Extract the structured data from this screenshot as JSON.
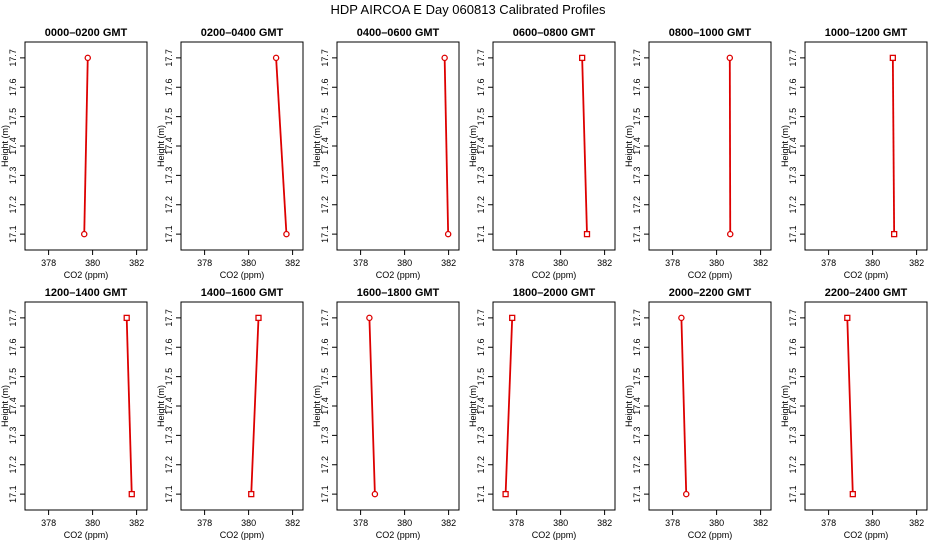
{
  "page": {
    "title": "HDP AIRCOA E  Day 060813  Calibrated Profiles"
  },
  "style": {
    "line_color": "#dd0000",
    "marker_color": "#dd0000",
    "axis_color": "#000000"
  },
  "chart_data": [
    {
      "type": "line",
      "title": "0000–0200 GMT",
      "xlabel": "CO2 (ppm)",
      "ylabel": "Height (m)",
      "xlim": [
        377.2,
        382.2
      ],
      "ylim": [
        17.08,
        17.72
      ],
      "xticks": [
        "378",
        "380",
        "382"
      ],
      "yticks": [
        "17.1",
        "17.2",
        "17.3",
        "17.4",
        "17.5",
        "17.6",
        "17.7"
      ],
      "marker": "circle",
      "points": [
        {
          "x": 379.78,
          "y": 17.7
        },
        {
          "x": 379.62,
          "y": 17.1
        }
      ]
    },
    {
      "type": "line",
      "title": "0200–0400 GMT",
      "xlabel": "CO2 (ppm)",
      "ylabel": "Height (m)",
      "xlim": [
        377.2,
        382.2
      ],
      "ylim": [
        17.08,
        17.72
      ],
      "xticks": [
        "378",
        "380",
        "382"
      ],
      "yticks": [
        "17.1",
        "17.2",
        "17.3",
        "17.4",
        "17.5",
        "17.6",
        "17.7"
      ],
      "marker": "circle",
      "points": [
        {
          "x": 381.25,
          "y": 17.7
        },
        {
          "x": 381.72,
          "y": 17.1
        }
      ]
    },
    {
      "type": "line",
      "title": "0400–0600 GMT",
      "xlabel": "CO2 (ppm)",
      "ylabel": "Height (m)",
      "xlim": [
        377.2,
        382.2
      ],
      "ylim": [
        17.08,
        17.72
      ],
      "xticks": [
        "378",
        "380",
        "382"
      ],
      "yticks": [
        "17.1",
        "17.2",
        "17.3",
        "17.4",
        "17.5",
        "17.6",
        "17.7"
      ],
      "marker": "circle",
      "points": [
        {
          "x": 381.82,
          "y": 17.7
        },
        {
          "x": 381.98,
          "y": 17.1
        }
      ]
    },
    {
      "type": "line",
      "title": "0600–0800 GMT",
      "xlabel": "CO2 (ppm)",
      "ylabel": "Height (m)",
      "xlim": [
        377.2,
        382.2
      ],
      "ylim": [
        17.08,
        17.72
      ],
      "xticks": [
        "378",
        "380",
        "382"
      ],
      "yticks": [
        "17.1",
        "17.2",
        "17.3",
        "17.4",
        "17.5",
        "17.6",
        "17.7"
      ],
      "marker": "square",
      "points": [
        {
          "x": 380.98,
          "y": 17.7
        },
        {
          "x": 381.2,
          "y": 17.1
        }
      ]
    },
    {
      "type": "line",
      "title": "0800–1000 GMT",
      "xlabel": "CO2 (ppm)",
      "ylabel": "Height (m)",
      "xlim": [
        377.2,
        382.2
      ],
      "ylim": [
        17.08,
        17.72
      ],
      "xticks": [
        "378",
        "380",
        "382"
      ],
      "yticks": [
        "17.1",
        "17.2",
        "17.3",
        "17.4",
        "17.5",
        "17.6",
        "17.7"
      ],
      "marker": "circle",
      "points": [
        {
          "x": 380.6,
          "y": 17.7
        },
        {
          "x": 380.62,
          "y": 17.1
        }
      ]
    },
    {
      "type": "line",
      "title": "1000–1200 GMT",
      "xlabel": "CO2 (ppm)",
      "ylabel": "Height (m)",
      "xlim": [
        377.2,
        382.2
      ],
      "ylim": [
        17.08,
        17.72
      ],
      "xticks": [
        "378",
        "380",
        "382"
      ],
      "yticks": [
        "17.1",
        "17.2",
        "17.3",
        "17.4",
        "17.5",
        "17.6",
        "17.7"
      ],
      "marker": "square",
      "points": [
        {
          "x": 380.92,
          "y": 17.7
        },
        {
          "x": 380.98,
          "y": 17.1
        }
      ]
    },
    {
      "type": "line",
      "title": "1200–1400 GMT",
      "xlabel": "CO2 (ppm)",
      "ylabel": "Height (m)",
      "xlim": [
        377.2,
        382.2
      ],
      "ylim": [
        17.08,
        17.72
      ],
      "xticks": [
        "378",
        "380",
        "382"
      ],
      "yticks": [
        "17.1",
        "17.2",
        "17.3",
        "17.4",
        "17.5",
        "17.6",
        "17.7"
      ],
      "marker": "square",
      "points": [
        {
          "x": 381.55,
          "y": 17.7
        },
        {
          "x": 381.78,
          "y": 17.1
        }
      ]
    },
    {
      "type": "line",
      "title": "1400–1600 GMT",
      "xlabel": "CO2 (ppm)",
      "ylabel": "Height (m)",
      "xlim": [
        377.2,
        382.2
      ],
      "ylim": [
        17.08,
        17.72
      ],
      "xticks": [
        "378",
        "380",
        "382"
      ],
      "yticks": [
        "17.1",
        "17.2",
        "17.3",
        "17.4",
        "17.5",
        "17.6",
        "17.7"
      ],
      "marker": "square",
      "points": [
        {
          "x": 380.45,
          "y": 17.7
        },
        {
          "x": 380.12,
          "y": 17.1
        }
      ]
    },
    {
      "type": "line",
      "title": "1600–1800 GMT",
      "xlabel": "CO2 (ppm)",
      "ylabel": "Height (m)",
      "xlim": [
        377.2,
        382.2
      ],
      "ylim": [
        17.08,
        17.72
      ],
      "xticks": [
        "378",
        "380",
        "382"
      ],
      "yticks": [
        "17.1",
        "17.2",
        "17.3",
        "17.4",
        "17.5",
        "17.6",
        "17.7"
      ],
      "marker": "circle",
      "points": [
        {
          "x": 378.4,
          "y": 17.7
        },
        {
          "x": 378.65,
          "y": 17.1
        }
      ]
    },
    {
      "type": "line",
      "title": "1800–2000 GMT",
      "xlabel": "CO2 (ppm)",
      "ylabel": "Height (m)",
      "xlim": [
        377.2,
        382.2
      ],
      "ylim": [
        17.08,
        17.72
      ],
      "xticks": [
        "378",
        "380",
        "382"
      ],
      "yticks": [
        "17.1",
        "17.2",
        "17.3",
        "17.4",
        "17.5",
        "17.6",
        "17.7"
      ],
      "marker": "square",
      "points": [
        {
          "x": 377.8,
          "y": 17.7
        },
        {
          "x": 377.5,
          "y": 17.1
        }
      ]
    },
    {
      "type": "line",
      "title": "2000–2200 GMT",
      "xlabel": "CO2 (ppm)",
      "ylabel": "Height (m)",
      "xlim": [
        377.2,
        382.2
      ],
      "ylim": [
        17.08,
        17.72
      ],
      "xticks": [
        "378",
        "380",
        "382"
      ],
      "yticks": [
        "17.1",
        "17.2",
        "17.3",
        "17.4",
        "17.5",
        "17.6",
        "17.7"
      ],
      "marker": "circle",
      "points": [
        {
          "x": 378.4,
          "y": 17.7
        },
        {
          "x": 378.62,
          "y": 17.1
        }
      ]
    },
    {
      "type": "line",
      "title": "2200–2400 GMT",
      "xlabel": "CO2 (ppm)",
      "ylabel": "Height (m)",
      "xlim": [
        377.2,
        382.2
      ],
      "ylim": [
        17.08,
        17.72
      ],
      "xticks": [
        "378",
        "380",
        "382"
      ],
      "yticks": [
        "17.1",
        "17.2",
        "17.3",
        "17.4",
        "17.5",
        "17.6",
        "17.7"
      ],
      "marker": "square",
      "points": [
        {
          "x": 378.85,
          "y": 17.7
        },
        {
          "x": 379.1,
          "y": 17.1
        }
      ]
    }
  ]
}
